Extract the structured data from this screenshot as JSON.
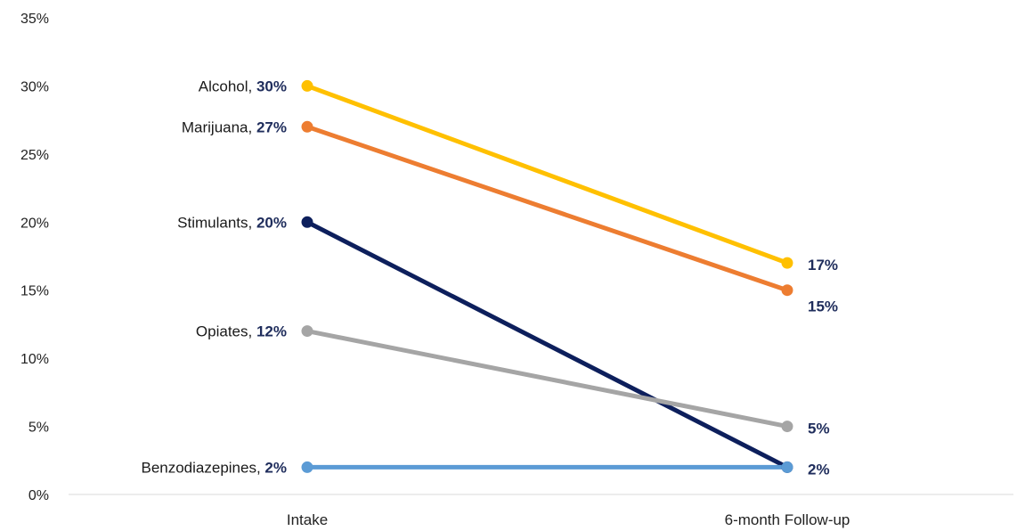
{
  "chart_data": {
    "type": "line",
    "title": "",
    "xlabel": "",
    "ylabel": "",
    "categories": [
      "Intake",
      "6-month Follow-up"
    ],
    "ylim": [
      0,
      35
    ],
    "yticks": [
      0,
      5,
      10,
      15,
      20,
      25,
      30,
      35
    ],
    "ytick_labels": [
      "0%",
      "5%",
      "10%",
      "15%",
      "20%",
      "25%",
      "30%",
      "35%"
    ],
    "grid": false,
    "legend": "none",
    "series": [
      {
        "name": "Alcohol",
        "color": "#FFC000",
        "values": [
          30,
          17
        ],
        "start_label_name": "Alcohol, ",
        "start_label_value": "30%",
        "end_label_value": "17%"
      },
      {
        "name": "Marijuana",
        "color": "#ED7D31",
        "values": [
          27,
          15
        ],
        "start_label_name": "Marijuana, ",
        "start_label_value": "27%",
        "end_label_value": "15%"
      },
      {
        "name": "Stimulants",
        "color": "#0D1F5C",
        "values": [
          20,
          2
        ],
        "start_label_name": "Stimulants, ",
        "start_label_value": "20%",
        "end_label_value": ""
      },
      {
        "name": "Opiates",
        "color": "#A5A5A5",
        "values": [
          12,
          5
        ],
        "start_label_name": "Opiates, ",
        "start_label_value": "12%",
        "end_label_value": "5%"
      },
      {
        "name": "Benzodiazepines",
        "color": "#5B9BD5",
        "values": [
          2,
          2
        ],
        "start_label_name": "Benzodiazepines, ",
        "start_label_value": "2%",
        "end_label_value": "2%"
      }
    ],
    "colors": {
      "axis": "#d9d9d9",
      "value_label": "#1f2d5c",
      "text": "#222222"
    }
  }
}
